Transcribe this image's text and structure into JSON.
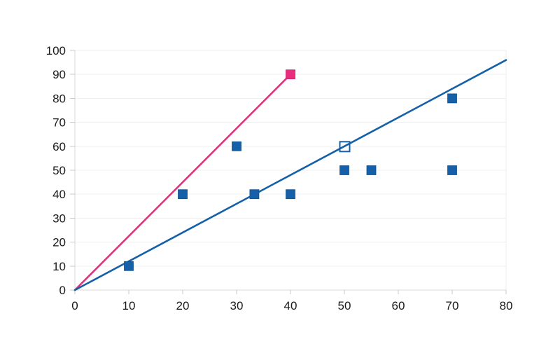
{
  "chart_data": {
    "type": "scatter",
    "title": "",
    "xlabel": "",
    "ylabel": "",
    "xlim": [
      0,
      80
    ],
    "ylim": [
      0,
      100
    ],
    "x_ticks": [
      0,
      10,
      20,
      30,
      40,
      50,
      60,
      70,
      80
    ],
    "y_ticks": [
      0,
      10,
      20,
      30,
      40,
      50,
      60,
      70,
      80,
      90,
      100
    ],
    "grid": "horizontal",
    "legend": "none",
    "colors": {
      "blue": "#1560a8",
      "blue_edge": "#11518f",
      "pink": "#e82d7d",
      "pink_edge": "#c92069",
      "gridline": "#efefef",
      "axis": "#d9d9d9",
      "tick": "#c9c9c9",
      "label": "#1a1a1a",
      "background": "#ffffff"
    },
    "marker_size": 13,
    "line_width": 2.6,
    "series": [
      {
        "name": "blue-filled-points",
        "marker": "filled-square",
        "color_key": "blue",
        "points": [
          [
            10,
            10
          ],
          [
            20,
            40
          ],
          [
            30,
            60
          ],
          [
            33.3,
            40
          ],
          [
            40,
            40
          ],
          [
            50,
            50
          ],
          [
            55,
            50
          ],
          [
            70,
            50
          ],
          [
            70,
            80
          ]
        ]
      },
      {
        "name": "blue-open-point",
        "marker": "open-square",
        "color_key": "blue",
        "points": [
          [
            50,
            60
          ]
        ]
      },
      {
        "name": "pink-point",
        "marker": "filled-square",
        "color_key": "pink",
        "points": [
          [
            40,
            90
          ]
        ]
      }
    ],
    "lines": [
      {
        "name": "pink-trend-line",
        "color_key": "pink",
        "from": [
          0,
          0
        ],
        "to": [
          40,
          90
        ]
      },
      {
        "name": "blue-trend-line",
        "color_key": "blue",
        "from": [
          0,
          0
        ],
        "to": [
          80,
          96
        ]
      }
    ]
  }
}
